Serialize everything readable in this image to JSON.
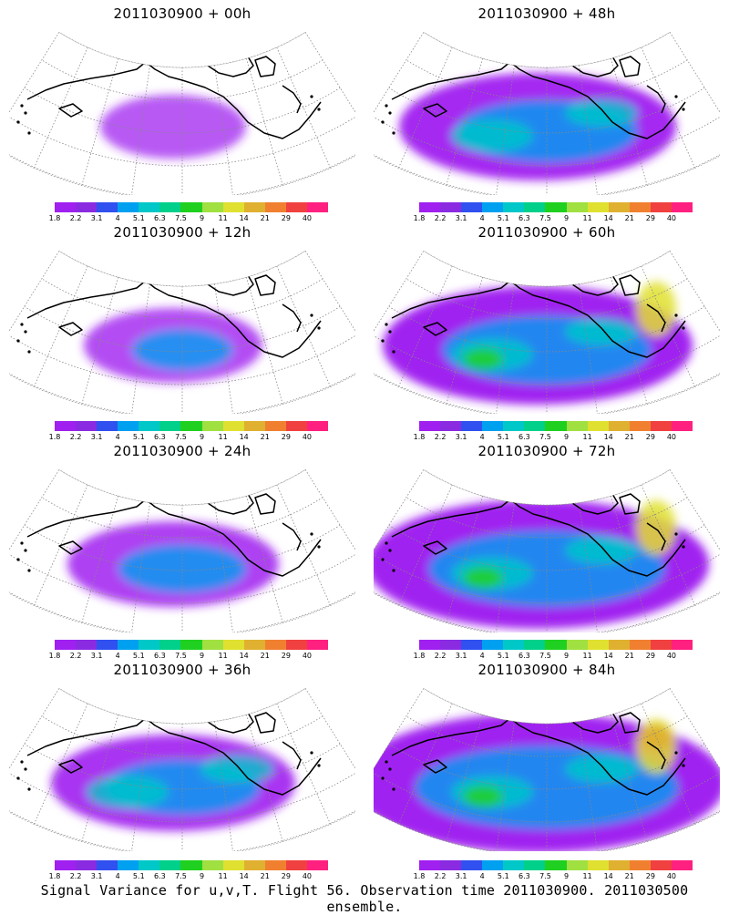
{
  "panels": [
    {
      "title": "2011030900 + 00h",
      "intensity": 0
    },
    {
      "title": "2011030900 + 48h",
      "intensity": 4
    },
    {
      "title": "2011030900 + 12h",
      "intensity": 1
    },
    {
      "title": "2011030900 + 60h",
      "intensity": 5
    },
    {
      "title": "2011030900 + 24h",
      "intensity": 2
    },
    {
      "title": "2011030900 + 72h",
      "intensity": 6
    },
    {
      "title": "2011030900 + 36h",
      "intensity": 3
    },
    {
      "title": "2011030900 + 84h",
      "intensity": 7
    }
  ],
  "colorbar": {
    "colors": [
      "#a020f0",
      "#8a2be2",
      "#3050f0",
      "#00a0f0",
      "#00c8c8",
      "#00d08a",
      "#20d020",
      "#a0e040",
      "#e0e030",
      "#e0b030",
      "#f08030",
      "#f04040",
      "#ff2080"
    ],
    "ticks": [
      "1.8",
      "2.2",
      "3.1",
      "4",
      "5.1",
      "6.3",
      "7.5",
      "9",
      "11",
      "14",
      "21",
      "29",
      "40"
    ]
  },
  "footer": "Signal Variance for u,v,T. Flight 56. Observation time 2011030900. 2011030500 ensemble."
}
